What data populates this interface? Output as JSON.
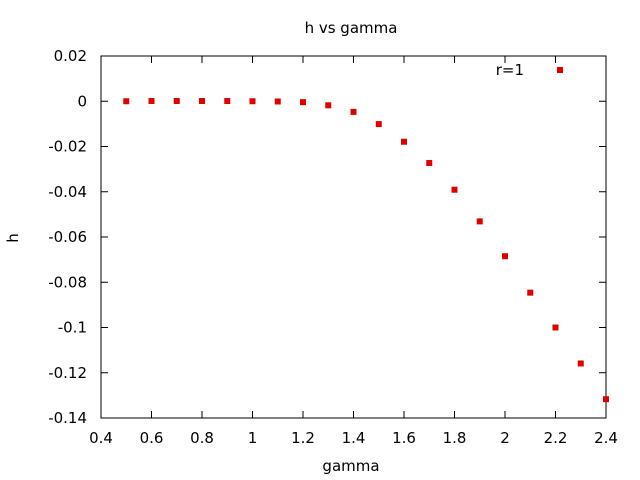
{
  "chart_data": {
    "type": "scatter",
    "title": "h vs gamma",
    "xlabel": "gamma",
    "ylabel": "h",
    "xlim": [
      0.4,
      2.4
    ],
    "ylim": [
      -0.14,
      0.02
    ],
    "x_ticks": [
      0.4,
      0.6,
      0.8,
      1.0,
      1.2,
      1.4,
      1.6,
      1.8,
      2.0,
      2.2,
      2.4
    ],
    "x_tick_labels": [
      "0.4",
      "0.6",
      "0.8",
      "1",
      "1.2",
      "1.4",
      "1.6",
      "1.8",
      "2",
      "2.2",
      "2.4"
    ],
    "y_ticks": [
      0.02,
      0,
      -0.02,
      -0.04,
      -0.06,
      -0.08,
      -0.1,
      -0.12,
      -0.14
    ],
    "y_tick_labels": [
      "0.02",
      "0",
      "-0.02",
      "-0.04",
      "-0.06",
      "-0.08",
      "-0.1",
      "-0.12",
      "-0.14"
    ],
    "grid": false,
    "legend_position": "top-right",
    "series": [
      {
        "name": "r=1",
        "color": "#e00000",
        "x": [
          0.5,
          0.6,
          0.7,
          0.8,
          0.9,
          1.0,
          1.1,
          1.2,
          1.3,
          1.4,
          1.5,
          1.6,
          1.7,
          1.8,
          1.9,
          2.0,
          2.1,
          2.2,
          2.3,
          2.4
        ],
        "y": [
          0.0,
          0.0001,
          0.0001,
          0.0001,
          0.0001,
          0.0,
          -0.0001,
          -0.0004,
          -0.0018,
          -0.0047,
          -0.0101,
          -0.0179,
          -0.0273,
          -0.0391,
          -0.0531,
          -0.0685,
          -0.0846,
          -0.1,
          -0.1159,
          -0.1317
        ]
      }
    ]
  }
}
